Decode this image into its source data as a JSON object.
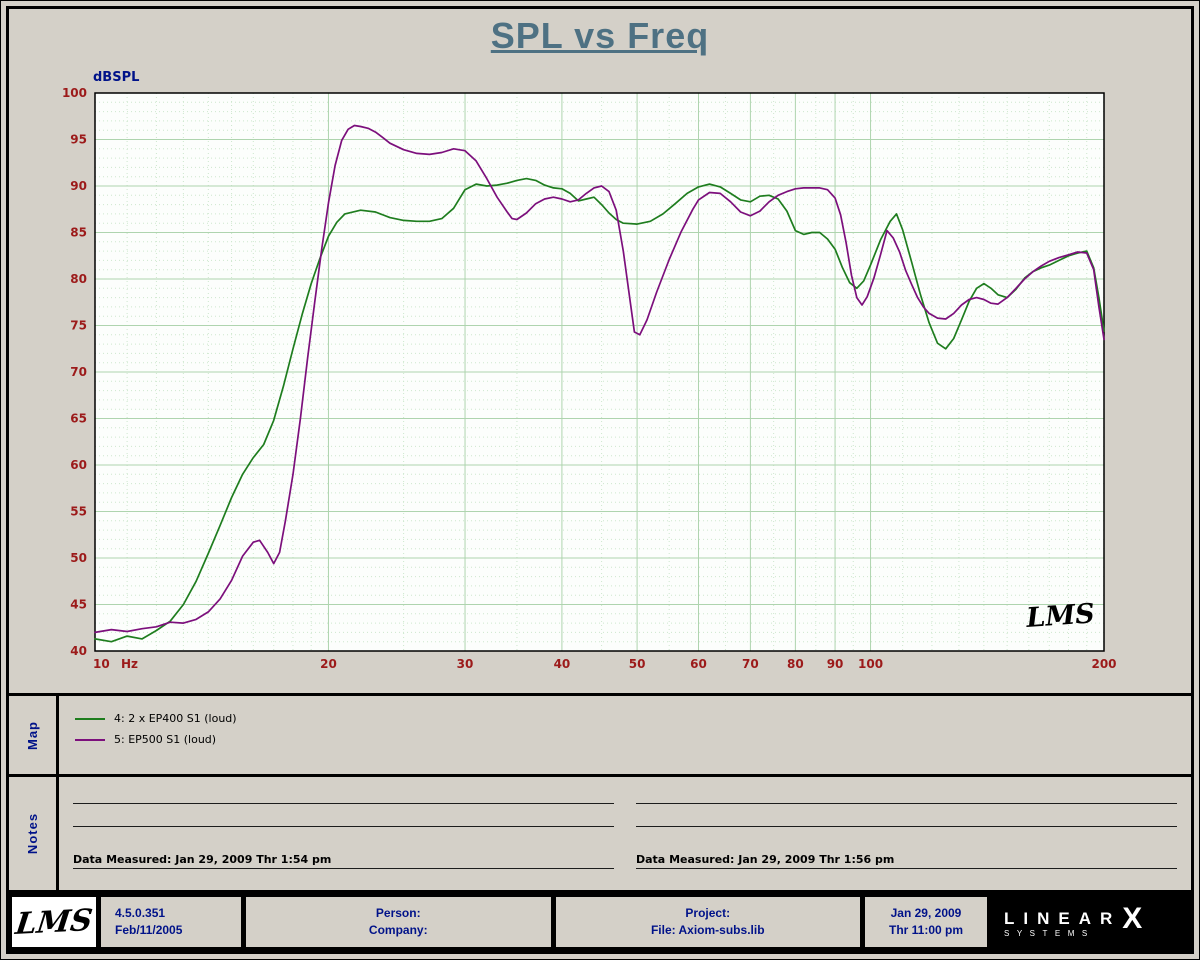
{
  "title": "SPL vs Freq",
  "watermark": "LMS",
  "colors": {
    "page_bg": "#d4d0c8",
    "plot_bg": "#fcfefc",
    "grid_major": "#aed4ae",
    "grid_minor": "#cde7cd",
    "tick_text": "#9c1a1a",
    "axis_label_blue": "#001289",
    "title_text": "#4e7183",
    "green_series": "#1e7d1e",
    "purple_series": "#7c0f7c"
  },
  "axes": {
    "y_label": "dBSPL",
    "y_ticks": [
      100,
      95,
      90,
      85,
      80,
      75,
      70,
      65,
      60,
      55,
      50,
      45,
      40
    ],
    "x_ticks": [
      10,
      20,
      30,
      40,
      50,
      60,
      70,
      80,
      90,
      100,
      200
    ],
    "x_minor": [
      11,
      12,
      13,
      14,
      15,
      16,
      17,
      18,
      19,
      25,
      35,
      45,
      55,
      65,
      75,
      85,
      95,
      110,
      120,
      130,
      140,
      150,
      160,
      170,
      180,
      190
    ],
    "x_unit": "Hz"
  },
  "chart_data": {
    "type": "line",
    "title": "SPL vs Freq",
    "xlabel": "Hz",
    "ylabel": "dBSPL",
    "x_scale": "log",
    "xlim": [
      10,
      200
    ],
    "ylim": [
      40,
      100
    ],
    "grid": true,
    "legend_position": "map-panel-below-chart",
    "series": [
      {
        "name": "4: 2 x EP400 S1 (loud)",
        "color": "#1e7d1e",
        "points": [
          [
            10,
            41.3
          ],
          [
            10.5,
            41.0
          ],
          [
            11,
            41.6
          ],
          [
            11.5,
            41.3
          ],
          [
            12,
            42.2
          ],
          [
            12.5,
            43.2
          ],
          [
            13,
            45.0
          ],
          [
            13.5,
            47.5
          ],
          [
            14,
            50.5
          ],
          [
            14.5,
            53.5
          ],
          [
            15,
            56.5
          ],
          [
            15.5,
            59.0
          ],
          [
            16,
            60.8
          ],
          [
            16.5,
            62.2
          ],
          [
            17,
            64.8
          ],
          [
            17.5,
            68.5
          ],
          [
            18,
            72.5
          ],
          [
            18.5,
            76.2
          ],
          [
            19,
            79.5
          ],
          [
            19.5,
            82.2
          ],
          [
            20,
            84.6
          ],
          [
            20.5,
            86.1
          ],
          [
            21,
            87.0
          ],
          [
            22,
            87.4
          ],
          [
            23,
            87.2
          ],
          [
            24,
            86.6
          ],
          [
            25,
            86.3
          ],
          [
            26,
            86.2
          ],
          [
            27,
            86.2
          ],
          [
            28,
            86.5
          ],
          [
            29,
            87.6
          ],
          [
            30,
            89.6
          ],
          [
            31,
            90.2
          ],
          [
            32,
            90.0
          ],
          [
            33,
            90.1
          ],
          [
            34,
            90.3
          ],
          [
            35,
            90.6
          ],
          [
            36,
            90.8
          ],
          [
            37,
            90.6
          ],
          [
            38,
            90.1
          ],
          [
            39,
            89.8
          ],
          [
            40,
            89.7
          ],
          [
            41,
            89.2
          ],
          [
            42,
            88.4
          ],
          [
            43,
            88.6
          ],
          [
            44,
            88.8
          ],
          [
            45,
            88.0
          ],
          [
            46,
            87.1
          ],
          [
            47,
            86.4
          ],
          [
            48,
            86.0
          ],
          [
            50,
            85.9
          ],
          [
            52,
            86.2
          ],
          [
            54,
            87.0
          ],
          [
            56,
            88.1
          ],
          [
            58,
            89.2
          ],
          [
            60,
            89.9
          ],
          [
            62,
            90.2
          ],
          [
            64,
            89.9
          ],
          [
            66,
            89.2
          ],
          [
            68,
            88.5
          ],
          [
            70,
            88.3
          ],
          [
            72,
            88.9
          ],
          [
            74,
            89.0
          ],
          [
            76,
            88.6
          ],
          [
            78,
            87.3
          ],
          [
            80,
            85.2
          ],
          [
            82,
            84.8
          ],
          [
            84,
            85.0
          ],
          [
            86,
            85.0
          ],
          [
            88,
            84.3
          ],
          [
            90,
            83.2
          ],
          [
            92,
            81.2
          ],
          [
            94,
            79.6
          ],
          [
            96,
            79.0
          ],
          [
            98,
            79.8
          ],
          [
            100,
            81.5
          ],
          [
            103,
            84.2
          ],
          [
            106,
            86.2
          ],
          [
            108,
            87.0
          ],
          [
            110,
            85.3
          ],
          [
            113,
            81.8
          ],
          [
            116,
            78.3
          ],
          [
            119,
            75.3
          ],
          [
            122,
            73.1
          ],
          [
            125,
            72.5
          ],
          [
            128,
            73.6
          ],
          [
            131,
            75.6
          ],
          [
            134,
            77.6
          ],
          [
            137,
            79.0
          ],
          [
            140,
            79.5
          ],
          [
            143,
            79.0
          ],
          [
            146,
            78.3
          ],
          [
            150,
            78.0
          ],
          [
            154,
            78.9
          ],
          [
            158,
            80.1
          ],
          [
            162,
            80.8
          ],
          [
            166,
            81.2
          ],
          [
            170,
            81.5
          ],
          [
            175,
            82.0
          ],
          [
            180,
            82.5
          ],
          [
            185,
            82.8
          ],
          [
            190,
            83.0
          ],
          [
            194,
            81.2
          ],
          [
            197,
            78.0
          ],
          [
            200,
            74.4
          ]
        ]
      },
      {
        "name": "5: EP500 S1 (loud)",
        "color": "#7c0f7c",
        "points": [
          [
            10,
            42.0
          ],
          [
            10.5,
            42.3
          ],
          [
            11,
            42.1
          ],
          [
            11.5,
            42.4
          ],
          [
            12,
            42.6
          ],
          [
            12.5,
            43.1
          ],
          [
            13,
            43.0
          ],
          [
            13.5,
            43.4
          ],
          [
            14,
            44.2
          ],
          [
            14.5,
            45.6
          ],
          [
            15,
            47.6
          ],
          [
            15.5,
            50.2
          ],
          [
            16,
            51.7
          ],
          [
            16.3,
            51.9
          ],
          [
            16.7,
            50.6
          ],
          [
            17,
            49.4
          ],
          [
            17.3,
            50.6
          ],
          [
            17.6,
            54.0
          ],
          [
            18,
            59.0
          ],
          [
            18.4,
            65.0
          ],
          [
            18.8,
            71.5
          ],
          [
            19.2,
            77.5
          ],
          [
            19.6,
            83.2
          ],
          [
            20,
            88.2
          ],
          [
            20.4,
            92.2
          ],
          [
            20.8,
            94.9
          ],
          [
            21.2,
            96.1
          ],
          [
            21.6,
            96.5
          ],
          [
            22,
            96.4
          ],
          [
            22.5,
            96.2
          ],
          [
            23,
            95.8
          ],
          [
            23.5,
            95.2
          ],
          [
            24,
            94.6
          ],
          [
            25,
            93.9
          ],
          [
            26,
            93.5
          ],
          [
            27,
            93.4
          ],
          [
            28,
            93.6
          ],
          [
            29,
            94.0
          ],
          [
            30,
            93.8
          ],
          [
            31,
            92.7
          ],
          [
            32,
            90.8
          ],
          [
            33,
            88.8
          ],
          [
            34,
            87.2
          ],
          [
            34.5,
            86.5
          ],
          [
            35,
            86.4
          ],
          [
            36,
            87.1
          ],
          [
            37,
            88.1
          ],
          [
            38,
            88.6
          ],
          [
            39,
            88.8
          ],
          [
            40,
            88.6
          ],
          [
            41,
            88.3
          ],
          [
            42,
            88.5
          ],
          [
            43,
            89.2
          ],
          [
            44,
            89.8
          ],
          [
            45,
            90.0
          ],
          [
            46,
            89.4
          ],
          [
            47,
            87.4
          ],
          [
            48,
            83.0
          ],
          [
            49,
            77.5
          ],
          [
            49.6,
            74.3
          ],
          [
            50.4,
            74.0
          ],
          [
            51.5,
            75.6
          ],
          [
            53,
            78.6
          ],
          [
            55,
            82.1
          ],
          [
            57,
            85.1
          ],
          [
            59,
            87.5
          ],
          [
            60,
            88.5
          ],
          [
            62,
            89.3
          ],
          [
            64,
            89.2
          ],
          [
            66,
            88.3
          ],
          [
            68,
            87.2
          ],
          [
            70,
            86.8
          ],
          [
            72,
            87.3
          ],
          [
            74,
            88.3
          ],
          [
            76,
            89.0
          ],
          [
            78,
            89.4
          ],
          [
            80,
            89.7
          ],
          [
            82,
            89.8
          ],
          [
            84,
            89.8
          ],
          [
            86,
            89.8
          ],
          [
            88,
            89.6
          ],
          [
            90,
            88.7
          ],
          [
            91.5,
            86.9
          ],
          [
            93,
            83.9
          ],
          [
            94.5,
            80.4
          ],
          [
            96,
            78.0
          ],
          [
            97.5,
            77.2
          ],
          [
            99,
            78.1
          ],
          [
            101,
            80.1
          ],
          [
            103,
            82.6
          ],
          [
            105,
            85.2
          ],
          [
            107,
            84.4
          ],
          [
            109,
            82.9
          ],
          [
            111,
            80.9
          ],
          [
            113,
            79.4
          ],
          [
            115,
            78.0
          ],
          [
            117,
            77.0
          ],
          [
            119,
            76.3
          ],
          [
            122,
            75.8
          ],
          [
            125,
            75.7
          ],
          [
            128,
            76.3
          ],
          [
            131,
            77.2
          ],
          [
            134,
            77.8
          ],
          [
            137,
            78.0
          ],
          [
            140,
            77.8
          ],
          [
            143,
            77.4
          ],
          [
            146,
            77.3
          ],
          [
            150,
            78.0
          ],
          [
            154,
            79.0
          ],
          [
            158,
            80.0
          ],
          [
            162,
            80.8
          ],
          [
            166,
            81.4
          ],
          [
            170,
            81.9
          ],
          [
            175,
            82.3
          ],
          [
            180,
            82.6
          ],
          [
            185,
            82.9
          ],
          [
            190,
            82.8
          ],
          [
            194,
            81.0
          ],
          [
            197,
            77.0
          ],
          [
            200,
            73.5
          ]
        ]
      }
    ]
  },
  "map_panel": {
    "label": "Map"
  },
  "notes_panel": {
    "label": "Notes",
    "left_caption": "Data Measured: Jan 29, 2009  Thr  1:54 pm",
    "right_caption": "Data Measured: Jan 29, 2009  Thr  1:56 pm"
  },
  "footer": {
    "logo": "LMS",
    "version": "4.5.0.351",
    "version_date": "Feb/11/2005",
    "person_label": "Person:",
    "company_label": "Company:",
    "project_label": "Project:",
    "file_label": "File: Axiom-subs.lib",
    "date": "Jan 29, 2009",
    "time": "Thr 11:00 pm",
    "brand_word": "LINEAR",
    "brand_x": "X",
    "brand_sub": "SYSTEMS"
  }
}
